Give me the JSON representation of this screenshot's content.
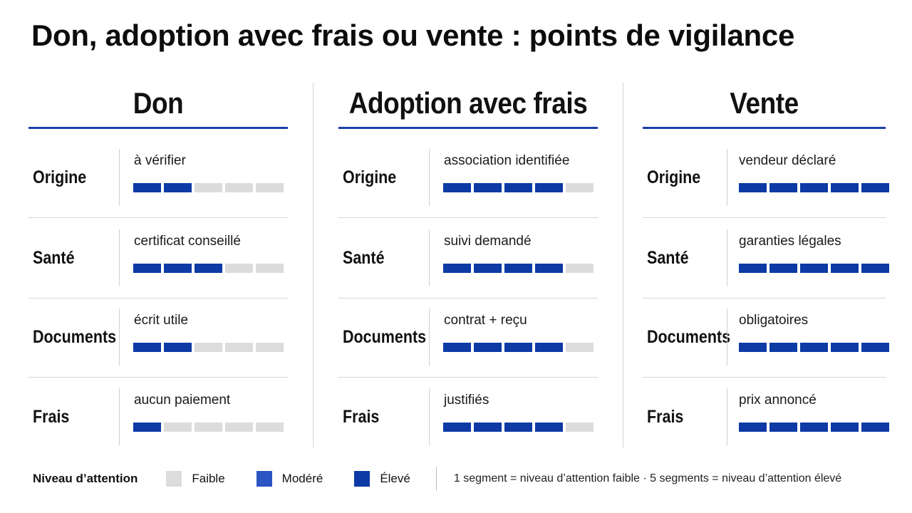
{
  "title": "Don, adoption avec frais ou vente : points de vigilance",
  "columns": [
    {
      "header": "Don",
      "rows": [
        {
          "label": "Origine",
          "desc": "à vérifier",
          "level": 2
        },
        {
          "label": "Santé",
          "desc": "certificat conseillé",
          "level": 3
        },
        {
          "label": "Documents",
          "desc": "écrit utile",
          "level": 2
        },
        {
          "label": "Frais",
          "desc": "aucun paiement",
          "level": 1
        }
      ]
    },
    {
      "header": "Adoption avec frais",
      "rows": [
        {
          "label": "Origine",
          "desc": "association identifiée",
          "level": 4
        },
        {
          "label": "Santé",
          "desc": "suivi demandé",
          "level": 4
        },
        {
          "label": "Documents",
          "desc": "contrat + reçu",
          "level": 4
        },
        {
          "label": "Frais",
          "desc": "justifiés",
          "level": 4
        }
      ]
    },
    {
      "header": "Vente",
      "rows": [
        {
          "label": "Origine",
          "desc": "vendeur déclaré",
          "level": 5
        },
        {
          "label": "Santé",
          "desc": "garanties légales",
          "level": 5
        },
        {
          "label": "Documents",
          "desc": "obligatoires",
          "level": 5
        },
        {
          "label": "Frais",
          "desc": "prix annoncé",
          "level": 5
        }
      ]
    }
  ],
  "max_segments": 5,
  "legend": {
    "title": "Niveau d’attention",
    "items": [
      {
        "label": "Faible",
        "color": "#dcdcdc"
      },
      {
        "label": "Modéré",
        "color": "#2b55c2"
      },
      {
        "label": "Élevé",
        "color": "#0d3aa5"
      }
    ],
    "note": "1 segment = niveau d’attention faible · 5 segments = niveau d’attention élevé"
  },
  "colors": {
    "accent": "#1f3fa8",
    "segment_on": "#0d3aa5",
    "segment_off": "#dcdcdc"
  }
}
